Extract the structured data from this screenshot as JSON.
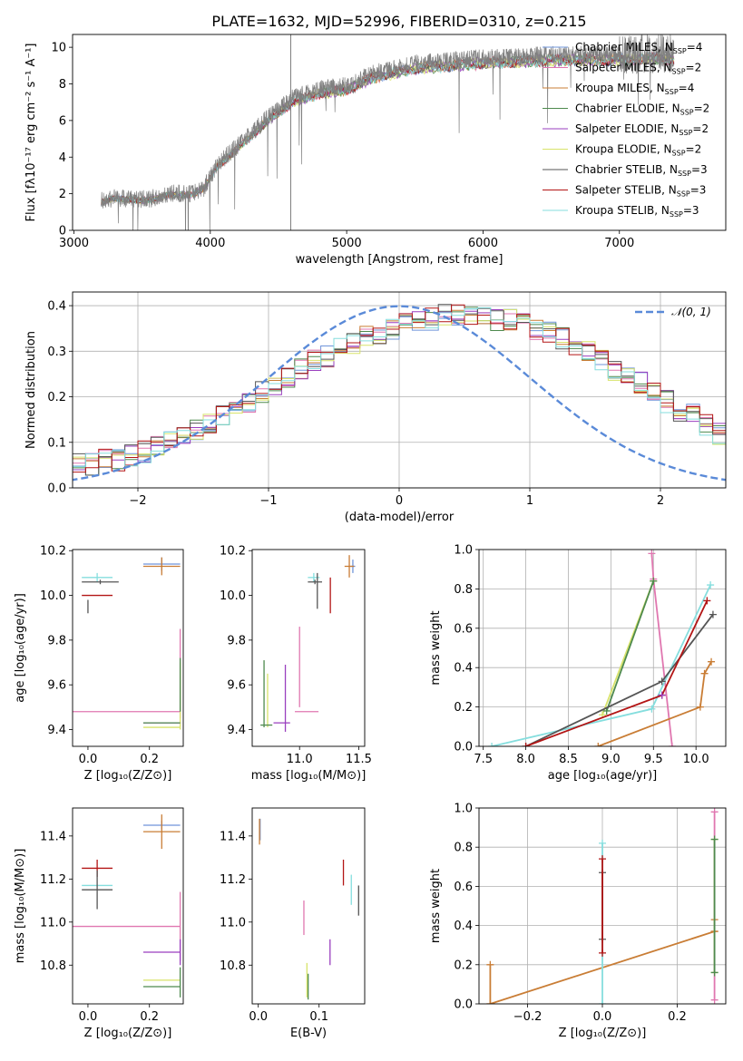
{
  "title": "PLATE=1632, MJD=52996, FIBERID=0310, z=0.215",
  "colors": {
    "chabrier_miles": "#6f94d9",
    "salpeter_miles": "#e077b0",
    "kroupa_miles": "#c97d35",
    "chabrier_elodie": "#4e8a4e",
    "salpeter_elodie": "#9a3fbf",
    "kroupa_elodie": "#d8e36a",
    "chabrier_stelib": "#555555",
    "salpeter_stelib": "#b31515",
    "kroupa_stelib": "#85dede",
    "data": "#808080",
    "normal": "#5a8ad8"
  },
  "chart_data": [
    {
      "type": "line",
      "id": "spectrum",
      "xlabel": "wavelength [Angstrom, rest frame]",
      "ylabel": "Flux [fλ10⁻¹⁷ erg cm⁻² s⁻¹ A⁻¹]",
      "xlim": [
        2990,
        7780
      ],
      "ylim": [
        0,
        10.7
      ],
      "xticks": [
        3000,
        4000,
        5000,
        6000,
        7000
      ],
      "yticks": [
        0,
        2,
        4,
        6,
        8,
        10
      ],
      "spectrum_continuum": [
        [
          3200,
          1.6
        ],
        [
          3300,
          1.8
        ],
        [
          3450,
          1.7
        ],
        [
          3550,
          1.7
        ],
        [
          3700,
          2.0
        ],
        [
          3850,
          2.0
        ],
        [
          3950,
          2.3
        ],
        [
          4050,
          3.6
        ],
        [
          4200,
          4.6
        ],
        [
          4400,
          6.0
        ],
        [
          4600,
          7.2
        ],
        [
          4800,
          7.7
        ],
        [
          5000,
          7.9
        ],
        [
          5200,
          8.6
        ],
        [
          5500,
          9.1
        ],
        [
          5800,
          9.3
        ],
        [
          6000,
          9.4
        ],
        [
          6300,
          9.5
        ],
        [
          6600,
          9.6
        ],
        [
          7000,
          9.6
        ],
        [
          7300,
          9.7
        ],
        [
          7400,
          9.6
        ]
      ],
      "spectrum_x_range": [
        3200,
        7400
      ],
      "legend": [
        {
          "name": "Chabrier MILES, N",
          "sub": "SSP",
          "n": "=4",
          "color": "#6f94d9"
        },
        {
          "name": "Salpeter MILES, N",
          "sub": "SSP",
          "n": "=2",
          "color": "#e077b0"
        },
        {
          "name": "Kroupa MILES, N",
          "sub": "SSP",
          "n": "=4",
          "color": "#c97d35"
        },
        {
          "name": "Chabrier ELODIE, N",
          "sub": "SSP",
          "n": "=2",
          "color": "#4e8a4e"
        },
        {
          "name": "Salpeter ELODIE, N",
          "sub": "SSP",
          "n": "=2",
          "color": "#9a3fbf"
        },
        {
          "name": "Kroupa ELODIE, N",
          "sub": "SSP",
          "n": "=2",
          "color": "#d8e36a"
        },
        {
          "name": "Chabrier STELIB, N",
          "sub": "SSP",
          "n": "=3",
          "color": "#555555"
        },
        {
          "name": "Salpeter STELIB, N",
          "sub": "SSP",
          "n": "=3",
          "color": "#b31515"
        },
        {
          "name": "Kroupa STELIB, N",
          "sub": "SSP",
          "n": "=3",
          "color": "#85dede"
        }
      ],
      "legend_placement": "top-right"
    },
    {
      "type": "line",
      "id": "residuals",
      "xlabel": "(data-model)/error",
      "ylabel": "Normed distribution",
      "xlim": [
        -2.5,
        2.5
      ],
      "ylim": [
        0,
        0.43
      ],
      "xticks": [
        -2,
        -1,
        0,
        1,
        2
      ],
      "yticks": [
        0.0,
        0.1,
        0.2,
        0.3,
        0.4
      ],
      "grid": true,
      "hist_bin_width": 0.1,
      "hist_profile": [
        0.04,
        0.05,
        0.05,
        0.06,
        0.06,
        0.07,
        0.08,
        0.09,
        0.1,
        0.11,
        0.13,
        0.14,
        0.16,
        0.17,
        0.19,
        0.21,
        0.22,
        0.24,
        0.26,
        0.28,
        0.29,
        0.31,
        0.32,
        0.33,
        0.34,
        0.35,
        0.36,
        0.37,
        0.37,
        0.38,
        0.38,
        0.38,
        0.38,
        0.37,
        0.37,
        0.36,
        0.35,
        0.34,
        0.33,
        0.31,
        0.3,
        0.28,
        0.26,
        0.25,
        0.23,
        0.21,
        0.19,
        0.17,
        0.16,
        0.14,
        0.12,
        0.11,
        0.1,
        0.09,
        0.08,
        0.07,
        0.06,
        0.05,
        0.05,
        0.04,
        0.04,
        0.04,
        0.03,
        0.03,
        0.03,
        0.03,
        0.03,
        0.03,
        0.03,
        0.03,
        0.03,
        0.03
      ],
      "normal_legend": "𝒩(0, 1)",
      "legend_placement": "top-right"
    },
    {
      "type": "scatter",
      "id": "age_vs_Z",
      "xlabel": "Z [log₁₀(Z/Z⊙)]",
      "ylabel": "age  [log₁₀(age/yr)]",
      "xlim": [
        -0.05,
        0.31
      ],
      "ylim": [
        9.325,
        10.205
      ],
      "xticks": [
        0.0,
        0.2
      ],
      "yticks": [
        9.4,
        9.6,
        9.8,
        10.0,
        10.2
      ],
      "points": [
        {
          "color": "#6f94d9",
          "x": 0.24,
          "xerr": 0.06,
          "y": 10.14,
          "yerr": 0.03
        },
        {
          "color": "#c97d35",
          "x": 0.24,
          "xerr": 0.06,
          "y": 10.13,
          "yerr": 0.04
        },
        {
          "color": "#85dede",
          "x": 0.03,
          "xerr": 0.05,
          "y": 10.08,
          "yerr": 0.02
        },
        {
          "color": "#555555",
          "x": 0.04,
          "xerr": 0.06,
          "y": 10.06,
          "yerr": 0.01
        },
        {
          "color": "#b31515",
          "x": 0.03,
          "xerr": 0.05,
          "y": 10.0,
          "yerr": 0.0
        },
        {
          "color": "#555555",
          "x": 0.0,
          "xerr": 0.0,
          "y": 9.95,
          "yerr": 0.03
        },
        {
          "color": "#e077b0",
          "x": 0.1,
          "xerr": 0.2,
          "y": 9.48,
          "yerr": 0.0
        },
        {
          "color": "#e077b0",
          "x": 0.3,
          "xerr": 0.0,
          "y": 9.65,
          "yerr": 0.2
        },
        {
          "color": "#d8e36a",
          "x": 0.3,
          "xerr": 0.0,
          "y": 9.55,
          "yerr": 0.15
        },
        {
          "color": "#4e8a4e",
          "x": 0.3,
          "xerr": 0.0,
          "y": 9.6,
          "yerr": 0.12
        },
        {
          "color": "#9a3fbf",
          "x": 0.24,
          "xerr": 0.06,
          "y": 9.43,
          "yerr": 0.0
        },
        {
          "color": "#d8e36a",
          "x": 0.24,
          "xerr": 0.06,
          "y": 9.41,
          "yerr": 0.0
        },
        {
          "color": "#4e8a4e",
          "x": 0.24,
          "xerr": 0.06,
          "y": 9.43,
          "yerr": 0.0
        }
      ]
    },
    {
      "type": "scatter",
      "id": "age_vs_mass",
      "xlabel": "mass [log₁₀(M/M⊙)]",
      "xlim": [
        10.6,
        11.55
      ],
      "ylim": [
        9.325,
        10.205
      ],
      "xticks": [
        11.0,
        11.5
      ],
      "yticks": [
        9.4,
        9.6,
        9.8,
        10.0,
        10.2
      ],
      "points": [
        {
          "color": "#6f94d9",
          "x": 11.45,
          "xerr": 0.02,
          "y": 10.13,
          "yerr": 0.03
        },
        {
          "color": "#c97d35",
          "x": 11.42,
          "xerr": 0.04,
          "y": 10.13,
          "yerr": 0.05
        },
        {
          "color": "#85dede",
          "x": 11.12,
          "xerr": 0.05,
          "y": 10.08,
          "yerr": 0.02
        },
        {
          "color": "#555555",
          "x": 11.13,
          "xerr": 0.06,
          "y": 10.06,
          "yerr": 0.01
        },
        {
          "color": "#555555",
          "x": 11.15,
          "xerr": 0.0,
          "y": 10.02,
          "yerr": 0.08
        },
        {
          "color": "#b31515",
          "x": 11.26,
          "xerr": 0.0,
          "y": 10.0,
          "yerr": 0.08
        },
        {
          "color": "#e077b0",
          "x": 11.0,
          "xerr": 0.0,
          "y": 9.68,
          "yerr": 0.18
        },
        {
          "color": "#e077b0",
          "x": 11.06,
          "xerr": 0.1,
          "y": 9.48,
          "yerr": 0.0
        },
        {
          "color": "#4e8a4e",
          "x": 10.7,
          "xerr": 0.0,
          "y": 9.56,
          "yerr": 0.15
        },
        {
          "color": "#d8e36a",
          "x": 10.73,
          "xerr": 0.0,
          "y": 9.53,
          "yerr": 0.12
        },
        {
          "color": "#9a3fbf",
          "x": 10.88,
          "xerr": 0.0,
          "y": 9.54,
          "yerr": 0.15
        },
        {
          "color": "#9a3fbf",
          "x": 10.85,
          "xerr": 0.07,
          "y": 9.43,
          "yerr": 0.0
        },
        {
          "color": "#4e8a4e",
          "x": 10.72,
          "xerr": 0.05,
          "y": 9.42,
          "yerr": 0.0
        }
      ]
    },
    {
      "type": "line",
      "id": "weight_vs_age",
      "xlabel": "age  [log₁₀(age/yr)]",
      "ylabel": "mass weight",
      "xlim": [
        7.45,
        10.35
      ],
      "ylim": [
        0,
        1
      ],
      "xticks": [
        7.5,
        8.0,
        8.5,
        9.0,
        9.5,
        10.0
      ],
      "yticks": [
        0.0,
        0.2,
        0.4,
        0.6,
        0.8,
        1.0
      ],
      "grid": true,
      "series": [
        {
          "color": "#e077b0",
          "points": [
            [
              9.48,
              0.98
            ],
            [
              9.5,
              0.85
            ],
            [
              9.72,
              0.0
            ]
          ]
        },
        {
          "color": "#d8e36a",
          "points": [
            [
              8.9,
              0.16
            ],
            [
              9.5,
              0.84
            ]
          ]
        },
        {
          "color": "#4e8a4e",
          "points": [
            [
              8.95,
              0.18
            ],
            [
              9.5,
              0.84
            ]
          ]
        },
        {
          "color": "#85dede",
          "points": [
            [
              7.6,
              0.0
            ],
            [
              9.48,
              0.19
            ],
            [
              10.17,
              0.82
            ]
          ]
        },
        {
          "color": "#555555",
          "points": [
            [
              8.0,
              0.0
            ],
            [
              9.6,
              0.33
            ],
            [
              10.2,
              0.67
            ]
          ]
        },
        {
          "color": "#b31515",
          "points": [
            [
              8.0,
              0.0
            ],
            [
              9.6,
              0.26
            ],
            [
              10.13,
              0.74
            ]
          ]
        },
        {
          "color": "#c97d35",
          "points": [
            [
              8.85,
              0.0
            ],
            [
              10.05,
              0.2
            ],
            [
              10.1,
              0.37
            ],
            [
              10.18,
              0.43
            ]
          ]
        },
        {
          "color": "#9a3fbf",
          "points": [
            [
              9.6,
              0.26
            ]
          ]
        }
      ]
    },
    {
      "type": "scatter",
      "id": "mass_vs_Z",
      "xlabel": "Z [log₁₀(Z/Z⊙)]",
      "ylabel": "mass [log₁₀(M/M⊙)]",
      "xlim": [
        -0.05,
        0.31
      ],
      "ylim": [
        10.62,
        11.53
      ],
      "xticks": [
        0.0,
        0.2
      ],
      "yticks": [
        10.8,
        11.0,
        11.2,
        11.4
      ],
      "points": [
        {
          "color": "#6f94d9",
          "x": 0.24,
          "xerr": 0.06,
          "y": 11.45,
          "yerr": 0.02
        },
        {
          "color": "#c97d35",
          "x": 0.24,
          "xerr": 0.06,
          "y": 11.42,
          "yerr": 0.08
        },
        {
          "color": "#b31515",
          "x": 0.03,
          "xerr": 0.05,
          "y": 11.25,
          "yerr": 0.04
        },
        {
          "color": "#85dede",
          "x": 0.03,
          "xerr": 0.05,
          "y": 11.17,
          "yerr": 0.0
        },
        {
          "color": "#555555",
          "x": 0.03,
          "xerr": 0.05,
          "y": 11.15,
          "yerr": 0.09
        },
        {
          "color": "#e077b0",
          "x": 0.1,
          "xerr": 0.2,
          "y": 10.98,
          "yerr": 0.0
        },
        {
          "color": "#e077b0",
          "x": 0.3,
          "xerr": 0.0,
          "y": 10.98,
          "yerr": 0.16
        },
        {
          "color": "#9a3fbf",
          "x": 0.24,
          "xerr": 0.06,
          "y": 10.86,
          "yerr": 0.0
        },
        {
          "color": "#9a3fbf",
          "x": 0.3,
          "xerr": 0.0,
          "y": 10.86,
          "yerr": 0.06
        },
        {
          "color": "#d8e36a",
          "x": 0.24,
          "xerr": 0.06,
          "y": 10.73,
          "yerr": 0.0
        },
        {
          "color": "#4e8a4e",
          "x": 0.24,
          "xerr": 0.06,
          "y": 10.7,
          "yerr": 0.0
        },
        {
          "color": "#4e8a4e",
          "x": 0.3,
          "xerr": 0.0,
          "y": 10.72,
          "yerr": 0.07
        }
      ]
    },
    {
      "type": "scatter",
      "id": "mass_vs_EBV",
      "xlabel": "E(B-V)",
      "xlim": [
        -0.01,
        0.175
      ],
      "ylim": [
        10.62,
        11.53
      ],
      "xticks": [
        0.0,
        0.1
      ],
      "yticks": [
        10.8,
        11.0,
        11.2,
        11.4
      ],
      "points": [
        {
          "color": "#6f94d9",
          "x": 0.003,
          "xerr": 0.0,
          "y": 11.43,
          "yerr": 0.05
        },
        {
          "color": "#c97d35",
          "x": 0.002,
          "xerr": 0.0,
          "y": 11.42,
          "yerr": 0.06
        },
        {
          "color": "#b31515",
          "x": 0.14,
          "xerr": 0.0,
          "y": 11.23,
          "yerr": 0.06
        },
        {
          "color": "#85dede",
          "x": 0.153,
          "xerr": 0.0,
          "y": 11.15,
          "yerr": 0.07
        },
        {
          "color": "#555555",
          "x": 0.165,
          "xerr": 0.0,
          "y": 11.1,
          "yerr": 0.07
        },
        {
          "color": "#e077b0",
          "x": 0.075,
          "xerr": 0.0,
          "y": 11.02,
          "yerr": 0.08
        },
        {
          "color": "#9a3fbf",
          "x": 0.118,
          "xerr": 0.0,
          "y": 10.86,
          "yerr": 0.06
        },
        {
          "color": "#d8e36a",
          "x": 0.08,
          "xerr": 0.0,
          "y": 10.73,
          "yerr": 0.08
        },
        {
          "color": "#4e8a4e",
          "x": 0.082,
          "xerr": 0.0,
          "y": 10.7,
          "yerr": 0.06
        }
      ]
    },
    {
      "type": "line",
      "id": "weight_vs_Z",
      "xlabel": "Z [log₁₀(Z/Z⊙)]",
      "ylabel": "mass weight",
      "xlim": [
        -0.33,
        0.33
      ],
      "ylim": [
        0,
        1
      ],
      "xticks": [
        -0.2,
        0.0,
        0.2
      ],
      "yticks": [
        0.0,
        0.2,
        0.4,
        0.6,
        0.8,
        1.0
      ],
      "grid": true,
      "series": [
        {
          "color": "#c97d35",
          "points": [
            [
              -0.3,
              0.0
            ],
            [
              -0.3,
              0.2
            ],
            [
              -0.3,
              0.0
            ],
            [
              0.3,
              0.37
            ],
            [
              0.3,
              0.43
            ],
            [
              0.3,
              0.37
            ]
          ]
        },
        {
          "color": "#85dede",
          "points": [
            [
              0.0,
              0.0
            ],
            [
              0.0,
              0.82
            ]
          ]
        },
        {
          "color": "#555555",
          "points": [
            [
              0.0,
              0.33
            ],
            [
              0.0,
              0.67
            ]
          ]
        },
        {
          "color": "#b31515",
          "points": [
            [
              0.0,
              0.26
            ],
            [
              0.0,
              0.74
            ]
          ]
        },
        {
          "color": "#e077b0",
          "points": [
            [
              0.3,
              0.02
            ],
            [
              0.3,
              0.98
            ]
          ]
        },
        {
          "color": "#d8e36a",
          "points": [
            [
              0.3,
              0.16
            ],
            [
              0.3,
              0.84
            ]
          ]
        },
        {
          "color": "#4e8a4e",
          "points": [
            [
              0.3,
              0.16
            ],
            [
              0.3,
              0.84
            ]
          ]
        }
      ]
    }
  ]
}
